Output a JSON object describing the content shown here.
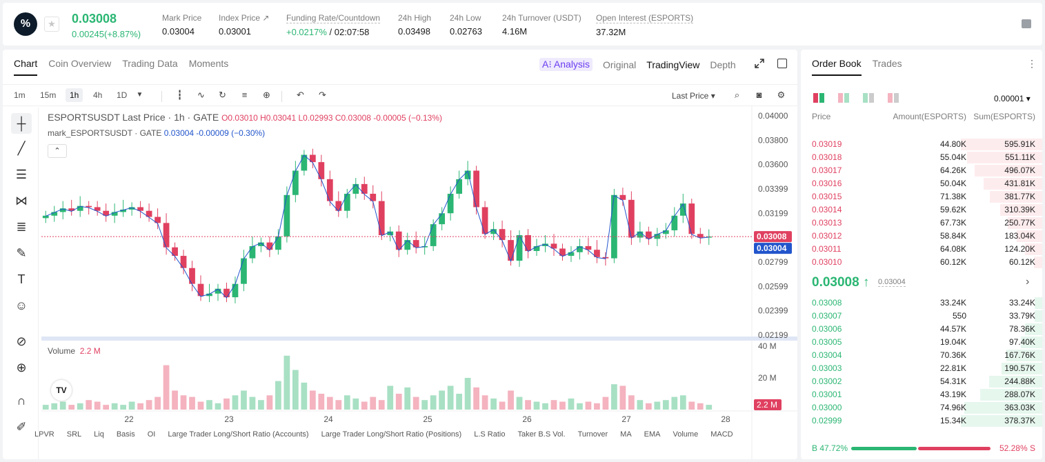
{
  "header": {
    "last_price": "0.03008",
    "change": "0.00245(+8.87%)",
    "stats": [
      {
        "label": "Mark Price",
        "value": "0.03004"
      },
      {
        "label": "Index Price ↗",
        "value": "0.03001"
      },
      {
        "label": "Funding Rate/Countdown",
        "value_green": "+0.0217%",
        "value": "/ 02:07:58"
      },
      {
        "label": "24h High",
        "value": "0.03498"
      },
      {
        "label": "24h Low",
        "value": "0.02763"
      },
      {
        "label": "24h Turnover (USDT)",
        "value": "4.16M"
      },
      {
        "label": "Open Interest (ESPORTS)",
        "value": "37.32M"
      }
    ]
  },
  "chart_tabs": [
    "Chart",
    "Coin Overview",
    "Trading Data",
    "Moments"
  ],
  "view_tabs": [
    "A⁝ Analysis",
    "Original",
    "TradingView",
    "Depth"
  ],
  "timeframes": [
    "1m",
    "15m",
    "1h",
    "4h",
    "1D"
  ],
  "price_type": "Last Price ▾",
  "legend": {
    "main": "ESPORTSUSDT Last Price · 1h · GATE",
    "ohlc": "O0.03010 H0.03041 L0.02993 C0.03008 -0.00005 (−0.13%)",
    "mark_name": "mark_ESPORTSUSDT · GATE",
    "mark_vals": "0.03004 -0.00009 (−0.30%)",
    "volume_label": "Volume",
    "volume_val": "2.2 M"
  },
  "indicators": [
    "LPVR",
    "SRL",
    "Liq",
    "Basis",
    "OI",
    "Large Trader Long/Short Ratio (Accounts)",
    "Large Trader Long/Short Ratio (Positions)",
    "L.S Ratio",
    "Taker B.S Vol.",
    "Turnover",
    "MA",
    "EMA",
    "Volume",
    "MACD"
  ],
  "chart_data": {
    "type": "candlestick",
    "price_axis": [
      "0.04000",
      "0.03800",
      "0.03600",
      "0.03399",
      "0.03199",
      "0.02799",
      "0.02599",
      "0.02399",
      "0.02199"
    ],
    "price_ylim": [
      0.02199,
      0.04
    ],
    "last_price_tag": "0.03008",
    "mark_price_tag": "0.03004",
    "volume_axis": [
      "40 M",
      "20 M"
    ],
    "volume_tag": "2.2 M",
    "x_ticks": [
      "22",
      "23",
      "24",
      "25",
      "26",
      "27",
      "28"
    ],
    "close_path": [
      0.0318,
      0.0321,
      0.0324,
      0.0322,
      0.0326,
      0.0325,
      0.0322,
      0.0318,
      0.0321,
      0.0323,
      0.0325,
      0.0322,
      0.0317,
      0.0312,
      0.0292,
      0.0285,
      0.0275,
      0.0262,
      0.0252,
      0.0254,
      0.0258,
      0.0251,
      0.0262,
      0.0283,
      0.0293,
      0.0296,
      0.029,
      0.0301,
      0.0335,
      0.0355,
      0.0368,
      0.0362,
      0.0348,
      0.033,
      0.0322,
      0.0336,
      0.0344,
      0.0336,
      0.033,
      0.0302,
      0.0305,
      0.029,
      0.0298,
      0.0292,
      0.0293,
      0.0311,
      0.032,
      0.0336,
      0.0348,
      0.0355,
      0.0325,
      0.0303,
      0.0307,
      0.0298,
      0.0281,
      0.0302,
      0.0289,
      0.0293,
      0.0295,
      0.0291,
      0.0285,
      0.0288,
      0.0293,
      0.029,
      0.0284,
      0.0283,
      0.0335,
      0.0331,
      0.03,
      0.0305,
      0.0299,
      0.0303,
      0.0306,
      0.0318,
      0.0328,
      0.0303,
      0.03,
      0.03008
    ],
    "volume_series": [
      3,
      4,
      5,
      3,
      4,
      6,
      5,
      3,
      4,
      3,
      5,
      4,
      6,
      8,
      28,
      12,
      9,
      8,
      5,
      6,
      4,
      7,
      9,
      12,
      8,
      6,
      9,
      18,
      34,
      25,
      17,
      12,
      10,
      8,
      6,
      9,
      7,
      5,
      8,
      6,
      15,
      10,
      14,
      8,
      6,
      9,
      12,
      15,
      10,
      20,
      14,
      9,
      7,
      5,
      12,
      8,
      6,
      5,
      4,
      6,
      5,
      7,
      4,
      5,
      4,
      8,
      16,
      15,
      9,
      6,
      4,
      5,
      6,
      8,
      9,
      5,
      4,
      3
    ]
  },
  "order_book": {
    "tabs": [
      "Order Book",
      "Trades"
    ],
    "precision": "0.00001 ▾",
    "headers": [
      "Price",
      "Amount(ESPORTS)",
      "Sum(ESPORTS)"
    ],
    "asks": [
      {
        "price": "0.03019",
        "amount": "44.80K",
        "sum": "595.91K",
        "depth": 1.0
      },
      {
        "price": "0.03018",
        "amount": "55.04K",
        "sum": "551.11K",
        "depth": 0.92
      },
      {
        "price": "0.03017",
        "amount": "64.26K",
        "sum": "496.07K",
        "depth": 0.83
      },
      {
        "price": "0.03016",
        "amount": "50.04K",
        "sum": "431.81K",
        "depth": 0.72
      },
      {
        "price": "0.03015",
        "amount": "71.38K",
        "sum": "381.77K",
        "depth": 0.64
      },
      {
        "price": "0.03014",
        "amount": "59.62K",
        "sum": "310.39K",
        "depth": 0.52
      },
      {
        "price": "0.03013",
        "amount": "67.73K",
        "sum": "250.77K",
        "depth": 0.42
      },
      {
        "price": "0.03012",
        "amount": "58.84K",
        "sum": "183.04K",
        "depth": 0.31
      },
      {
        "price": "0.03011",
        "amount": "64.08K",
        "sum": "124.20K",
        "depth": 0.21
      },
      {
        "price": "0.03010",
        "amount": "60.12K",
        "sum": "60.12K",
        "depth": 0.1
      }
    ],
    "mid_price": "0.03008 ↑",
    "mid_mark": "0.03004",
    "bids": [
      {
        "price": "0.03008",
        "amount": "33.24K",
        "sum": "33.24K",
        "depth": 0.09
      },
      {
        "price": "0.03007",
        "amount": "550",
        "sum": "33.79K",
        "depth": 0.09
      },
      {
        "price": "0.03006",
        "amount": "44.57K",
        "sum": "78.36K",
        "depth": 0.21
      },
      {
        "price": "0.03005",
        "amount": "19.04K",
        "sum": "97.40K",
        "depth": 0.26
      },
      {
        "price": "0.03004",
        "amount": "70.36K",
        "sum": "167.76K",
        "depth": 0.44
      },
      {
        "price": "0.03003",
        "amount": "22.81K",
        "sum": "190.57K",
        "depth": 0.5
      },
      {
        "price": "0.03002",
        "amount": "54.31K",
        "sum": "244.88K",
        "depth": 0.65
      },
      {
        "price": "0.03001",
        "amount": "43.19K",
        "sum": "288.07K",
        "depth": 0.76
      },
      {
        "price": "0.03000",
        "amount": "74.96K",
        "sum": "363.03K",
        "depth": 0.96
      },
      {
        "price": "0.02999",
        "amount": "15.34K",
        "sum": "378.37K",
        "depth": 1.0
      }
    ],
    "buy_ratio": "B 47.72%",
    "sell_ratio": "52.28% S",
    "buy_fraction": 0.4772
  },
  "colors": {
    "up": "#2bb673",
    "down": "#e04060",
    "mark": "#2255cc"
  }
}
